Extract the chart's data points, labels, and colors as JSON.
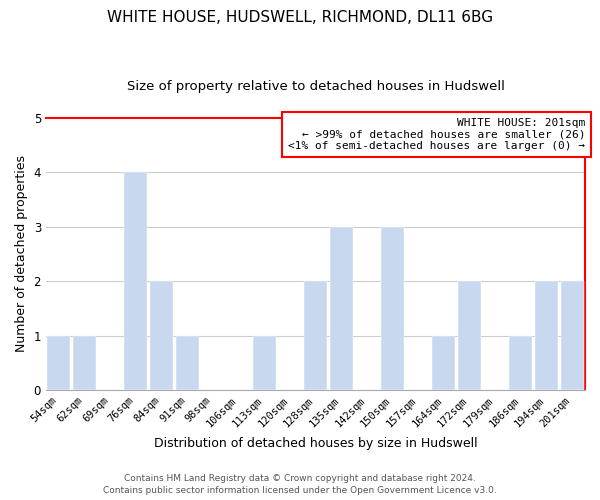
{
  "title": "WHITE HOUSE, HUDSWELL, RICHMOND, DL11 6BG",
  "subtitle": "Size of property relative to detached houses in Hudswell",
  "xlabel": "Distribution of detached houses by size in Hudswell",
  "ylabel": "Number of detached properties",
  "bar_labels": [
    "54sqm",
    "62sqm",
    "69sqm",
    "76sqm",
    "84sqm",
    "91sqm",
    "98sqm",
    "106sqm",
    "113sqm",
    "120sqm",
    "128sqm",
    "135sqm",
    "142sqm",
    "150sqm",
    "157sqm",
    "164sqm",
    "172sqm",
    "179sqm",
    "186sqm",
    "194sqm",
    "201sqm"
  ],
  "bar_values": [
    1,
    1,
    0,
    4,
    2,
    1,
    0,
    0,
    1,
    0,
    2,
    3,
    0,
    3,
    0,
    1,
    2,
    0,
    1,
    2,
    2
  ],
  "bar_color": "#c8d9ef",
  "ylim": [
    0,
    5
  ],
  "yticks": [
    0,
    1,
    2,
    3,
    4,
    5
  ],
  "legend_title": "WHITE HOUSE: 201sqm",
  "legend_line1": "← >99% of detached houses are smaller (26)",
  "legend_line2": "<1% of semi-detached houses are larger (0) →",
  "footer_line1": "Contains HM Land Registry data © Crown copyright and database right 2024.",
  "footer_line2": "Contains public sector information licensed under the Open Government Licence v3.0.",
  "background_color": "white",
  "grid_color": "#cccccc",
  "title_fontsize": 11,
  "subtitle_fontsize": 9.5,
  "axis_label_fontsize": 9,
  "tick_fontsize": 7.5,
  "legend_fontsize": 8,
  "footer_fontsize": 6.5
}
